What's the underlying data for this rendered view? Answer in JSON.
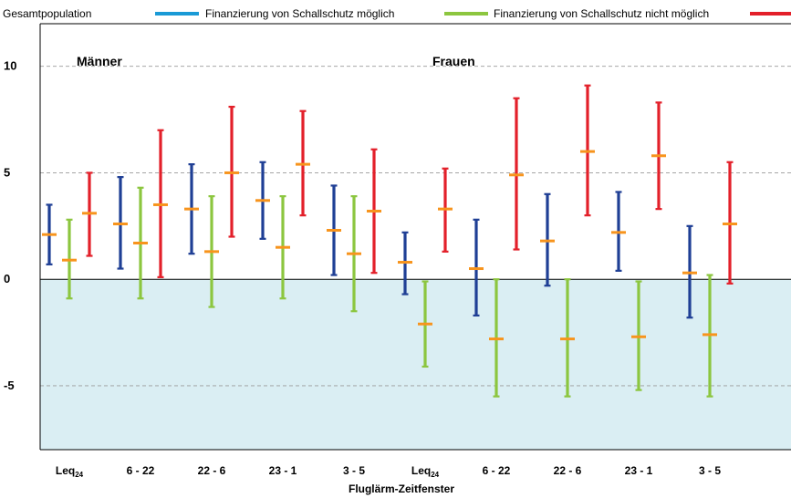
{
  "chart_data": {
    "type": "error-bar",
    "legend": {
      "placement": "top",
      "entries": [
        {
          "name": "Gesamtpopulation",
          "color": "#1f3f95"
        },
        {
          "name": "Finanzierung von Schallschutz möglich",
          "color": "#8cc63f"
        },
        {
          "name": "Finanzierung von Schallschutz nicht möglich",
          "color": "#e3202a"
        }
      ],
      "line_colors": [
        "#1a9ad6",
        "#8cc63f",
        "#e3202a"
      ]
    },
    "groups": [
      {
        "label": "Männer",
        "categories": [
          "Leq",
          "6 - 22",
          "22 - 6",
          "23 - 1",
          "3 - 5"
        ]
      },
      {
        "label": "Frauen",
        "categories": [
          "Leq",
          "6 - 22",
          "22 - 6",
          "23 - 1",
          "3 - 5"
        ]
      }
    ],
    "category_subscripts": [
      "24",
      "",
      "",
      "",
      "",
      "24",
      "",
      "",
      "",
      ""
    ],
    "xlabel": "Fluglärm-Zeitfenster",
    "ylabel": "",
    "ylim": [
      -8,
      12
    ],
    "yticks": [
      -5,
      0,
      5,
      10
    ],
    "estimate_color": "#f7941d",
    "negative_region_color": "#daeef3",
    "grid": "horizontal-dashed",
    "series": [
      {
        "name": "Gesamtpopulation",
        "color": "#1f3f95",
        "center": [
          2.1,
          2.6,
          3.3,
          3.7,
          2.3,
          0.8,
          0.5,
          1.8,
          2.2,
          0.3
        ],
        "low": [
          0.7,
          0.5,
          1.2,
          1.9,
          0.2,
          -0.7,
          -1.7,
          -0.3,
          0.4,
          -1.8
        ],
        "high": [
          3.5,
          4.8,
          5.4,
          5.5,
          4.4,
          2.2,
          2.8,
          4.0,
          4.1,
          2.5
        ]
      },
      {
        "name": "Finanzierung von Schallschutz möglich",
        "color": "#8cc63f",
        "center": [
          0.9,
          1.7,
          1.3,
          1.5,
          1.2,
          -2.1,
          -2.8,
          -2.8,
          -2.7,
          -2.6
        ],
        "low": [
          -0.9,
          -0.9,
          -1.3,
          -0.9,
          -1.5,
          -4.1,
          -5.5,
          -5.5,
          -5.2,
          -5.5
        ],
        "high": [
          2.8,
          4.3,
          3.9,
          3.9,
          3.9,
          -0.1,
          0.0,
          0.0,
          -0.1,
          0.2
        ]
      },
      {
        "name": "Finanzierung von Schallschutz nicht möglich",
        "color": "#e3202a",
        "center": [
          3.1,
          3.5,
          5.0,
          5.4,
          3.2,
          3.3,
          4.9,
          6.0,
          5.8,
          2.6
        ],
        "low": [
          1.1,
          0.1,
          2.0,
          3.0,
          0.3,
          1.3,
          1.4,
          3.0,
          3.3,
          -0.2
        ],
        "high": [
          5.0,
          7.0,
          8.1,
          7.9,
          6.1,
          5.2,
          8.5,
          9.1,
          8.3,
          5.5
        ]
      }
    ]
  }
}
